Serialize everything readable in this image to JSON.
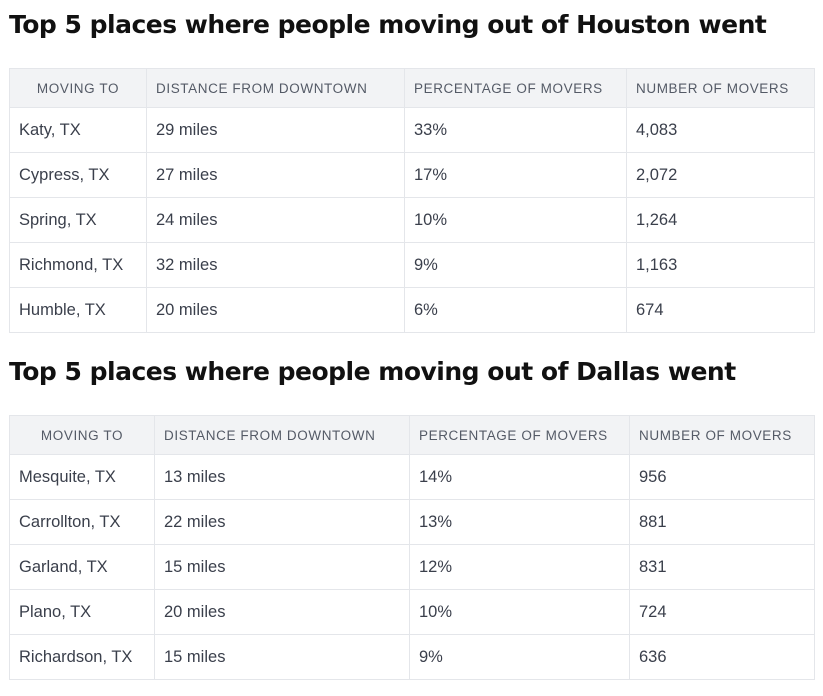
{
  "sections": [
    {
      "title": "Top 5 places where people moving out of Houston went",
      "columns": [
        "MOVING TO",
        "DISTANCE FROM DOWNTOWN",
        "PERCENTAGE OF MOVERS",
        "NUMBER OF MOVERS"
      ],
      "rows": [
        [
          "Katy, TX",
          "29 miles",
          "33%",
          "4,083"
        ],
        [
          "Cypress, TX",
          "27 miles",
          "17%",
          "2,072"
        ],
        [
          "Spring, TX",
          "24 miles",
          "10%",
          "1,264"
        ],
        [
          "Richmond, TX",
          "32 miles",
          "9%",
          "1,163"
        ],
        [
          "Humble, TX",
          "20 miles",
          "6%",
          "674"
        ]
      ]
    },
    {
      "title": "Top 5 places where people moving out of Dallas went",
      "columns": [
        "MOVING TO",
        "DISTANCE FROM DOWNTOWN",
        "PERCENTAGE OF MOVERS",
        "NUMBER OF MOVERS"
      ],
      "rows": [
        [
          "Mesquite, TX",
          "13 miles",
          "14%",
          "956"
        ],
        [
          "Carrollton, TX",
          "22 miles",
          "13%",
          "881"
        ],
        [
          "Garland, TX",
          "15 miles",
          "12%",
          "831"
        ],
        [
          "Plano, TX",
          "20 miles",
          "10%",
          "724"
        ],
        [
          "Richardson, TX",
          "15 miles",
          "9%",
          "636"
        ]
      ]
    }
  ]
}
